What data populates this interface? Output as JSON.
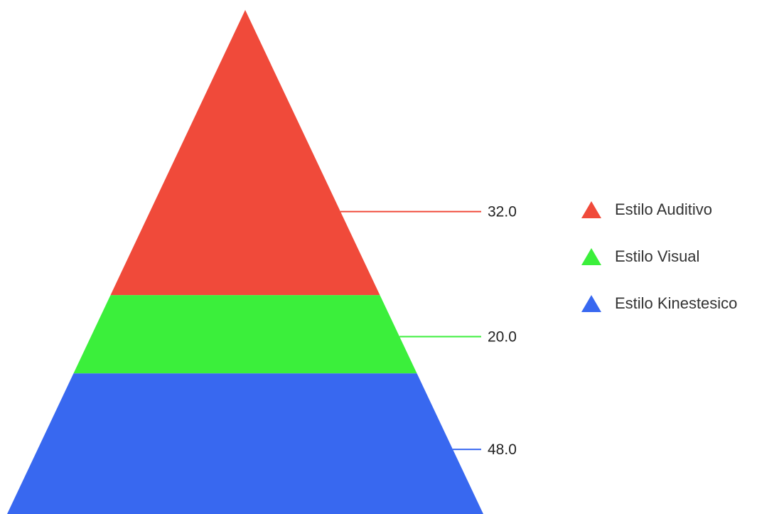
{
  "chart_data": {
    "type": "pyramid",
    "title": "",
    "series": [
      {
        "name": "Estilo Auditivo",
        "value": 32.0,
        "label": "32.0",
        "color": "#f04a3a"
      },
      {
        "name": "Estilo Visual",
        "value": 20.0,
        "label": "20.0",
        "color": "#3bef3b"
      },
      {
        "name": "Estilo Kinestesico",
        "value": 48.0,
        "label": "48.0",
        "color": "#3868f0"
      }
    ],
    "legend_position": "right",
    "order": "top-to-bottom"
  }
}
